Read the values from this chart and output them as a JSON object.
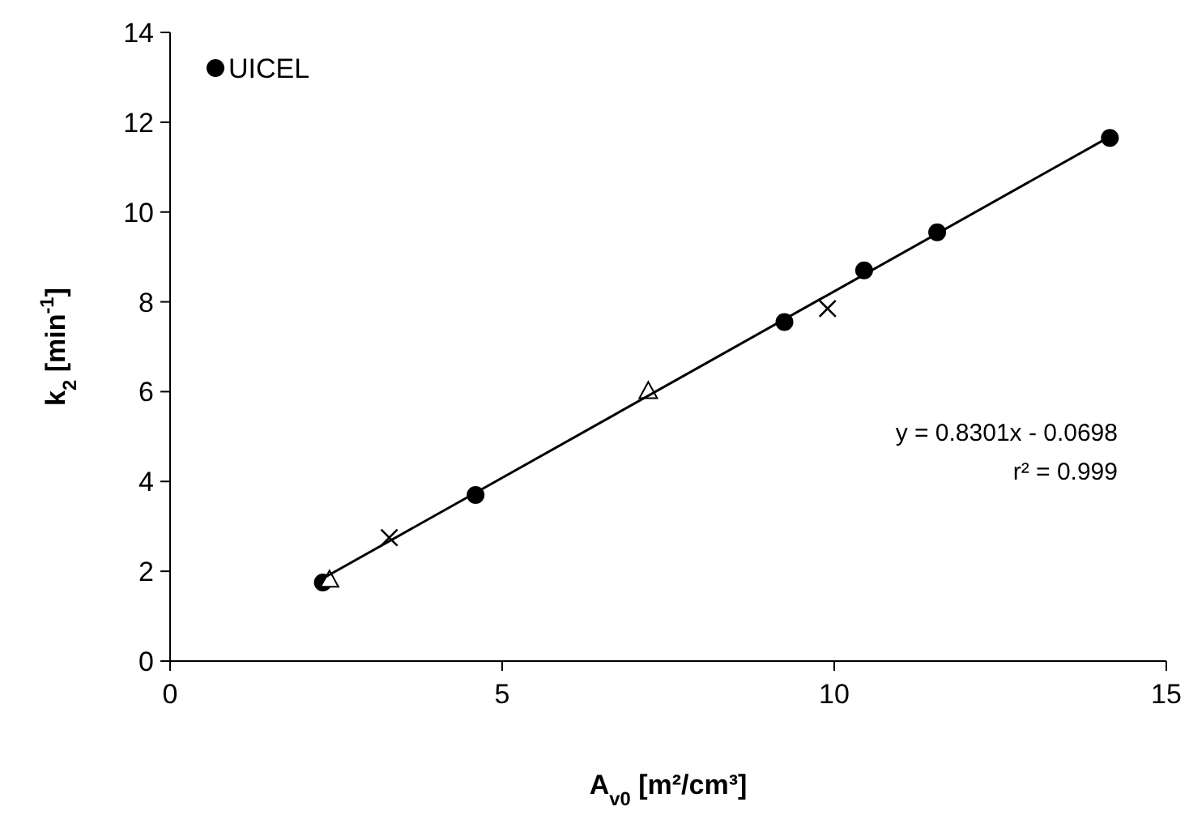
{
  "chart_data": {
    "type": "scatter",
    "xlabel": "A$_{v0}$ [m²/cm³]",
    "ylabel": "k$_{2}$ [min$^{-1}$]",
    "xlim": [
      0,
      15
    ],
    "xticks": [
      0,
      5,
      10,
      15
    ],
    "ylim": [
      0,
      14
    ],
    "yticks": [
      0,
      2,
      4,
      6,
      8,
      10,
      12,
      14
    ],
    "grid": false,
    "legend": "top left",
    "series": [
      {
        "name": "UICEL",
        "color": "#000000",
        "marker": "circle",
        "x": [
          2.3,
          4.6,
          9.25,
          10.45,
          11.55,
          14.15
        ],
        "values": [
          1.75,
          3.7,
          7.55,
          8.7,
          9.55,
          11.65
        ]
      },
      {
        "color": "#000000",
        "marker": "cross",
        "x": [
          3.3,
          9.9
        ],
        "values": [
          2.75,
          7.85
        ]
      },
      {
        "color": "#000000",
        "marker": "triangle",
        "x": [
          2.4,
          7.2
        ],
        "values": [
          1.8,
          6.0
        ]
      },
      {
        "type": "line",
        "color": "#000000",
        "marker": "none",
        "line_style": "solid",
        "x": [
          2.3,
          14.15
        ],
        "values": [
          1.84,
          11.68
        ]
      }
    ],
    "annotations": [
      "y = 0.8301x - 0.0698",
      "r² = 0.999"
    ]
  }
}
